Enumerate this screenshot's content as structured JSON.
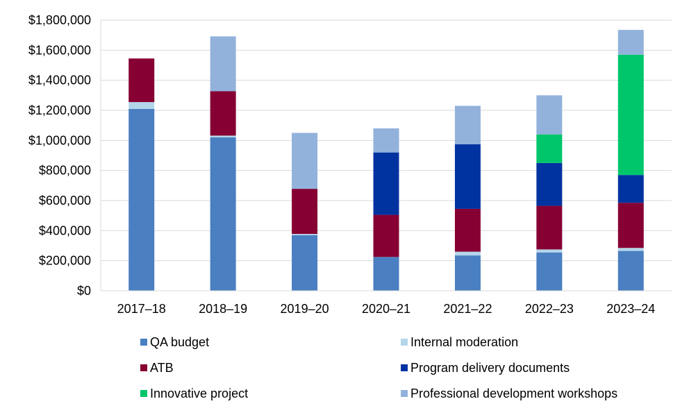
{
  "chart_data": {
    "type": "bar",
    "stacked": true,
    "title": "",
    "xlabel": "",
    "ylabel": "",
    "ylim": [
      0,
      1800000
    ],
    "y_tick_step": 200000,
    "y_tick_labels": [
      "$0",
      "$200,000",
      "$400,000",
      "$600,000",
      "$800,000",
      "$1,000,000",
      "$1,200,000",
      "$1,400,000",
      "$1,600,000",
      "$1,800,000"
    ],
    "grid": true,
    "legend_position": "bottom",
    "categories": [
      "2017–18",
      "2018–19",
      "2019–20",
      "2020–21",
      "2021–22",
      "2022–23",
      "2023–24"
    ],
    "series": [
      {
        "name": "QA budget",
        "color": "#4a7fc1",
        "values": [
          1210000,
          1020000,
          370000,
          225000,
          235000,
          255000,
          265000
        ]
      },
      {
        "name": "Internal moderation",
        "color": "#b4d6ea",
        "values": [
          45000,
          12000,
          8000,
          0,
          25000,
          20000,
          20000
        ]
      },
      {
        "name": "ATB",
        "color": "#860033",
        "values": [
          290000,
          295000,
          300000,
          280000,
          285000,
          290000,
          300000
        ]
      },
      {
        "name": "Program delivery documents",
        "color": "#0033a0",
        "values": [
          0,
          0,
          0,
          415000,
          430000,
          285000,
          185000
        ]
      },
      {
        "name": "Innovative project",
        "color": "#00c66b",
        "values": [
          0,
          0,
          0,
          0,
          0,
          190000,
          800000
        ]
      },
      {
        "name": "Professional development workshops",
        "color": "#92b2dc",
        "values": [
          0,
          365000,
          372000,
          160000,
          255000,
          260000,
          165000
        ]
      }
    ]
  }
}
